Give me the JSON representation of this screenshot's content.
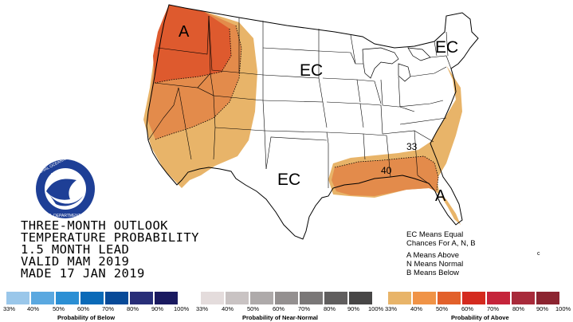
{
  "title_lines": [
    "THREE-MONTH OUTLOOK",
    "TEMPERATURE PROBABILITY",
    "1.5 MONTH LEAD",
    "VALID MAM 2019",
    "MADE 17 JAN 2019"
  ],
  "map_labels": {
    "a_northwest": "A",
    "ec_north_central": "EC",
    "ec_northeast": "EC",
    "ec_south_central": "EC",
    "a_southeast": "A"
  },
  "contour_labels": {
    "c33": "33",
    "c40": "40"
  },
  "legend_lines": {
    "ec_means": "EC Means Equal",
    "chances": "Chances For A, N, B",
    "a_means": "A Means Above",
    "n_means": "N Means Normal",
    "b_means": "B Means Below"
  },
  "logo": {
    "name": "NOAA",
    "ring_text": "NATIONAL OCEANIC AND ATMOSPHERIC ADMINISTRATION",
    "ring_text_bottom": "U.S. DEPARTMENT OF COMMERCE"
  },
  "scales": [
    {
      "caption": "Probability of Below",
      "labels": [
        "33%",
        "40%",
        "50%",
        "60%",
        "70%",
        "80%",
        "90%",
        "100%"
      ],
      "colors": [
        "#9ac7ea",
        "#5aa8e0",
        "#2b8fd4",
        "#0a6ab8",
        "#074a98",
        "#282e78",
        "#1a1a60",
        "#10104a"
      ]
    },
    {
      "caption": "Probability of Near-Normal",
      "labels": [
        "33%",
        "40%",
        "50%",
        "60%",
        "70%",
        "80%",
        "90%",
        "100%"
      ],
      "colors": [
        "#e4dcdc",
        "#c9c3c3",
        "#aeaaaa",
        "#949090",
        "#7a7777",
        "#605e5e",
        "#474646",
        "#2e2e2e"
      ]
    },
    {
      "caption": "Probability of Above",
      "labels": [
        "33%",
        "40%",
        "50%",
        "60%",
        "70%",
        "80%",
        "90%",
        "100%"
      ],
      "colors": [
        "#e8b469",
        "#f09346",
        "#e2602a",
        "#d42a1e",
        "#c5243a",
        "#a82a3a",
        "#8c2430",
        "#6b1c24"
      ]
    }
  ],
  "colors": {
    "above_33": "#e8b469",
    "above_40": "#e38b4b",
    "above_50": "#de5a2e",
    "noaa_blue": "#1e3f96"
  }
}
